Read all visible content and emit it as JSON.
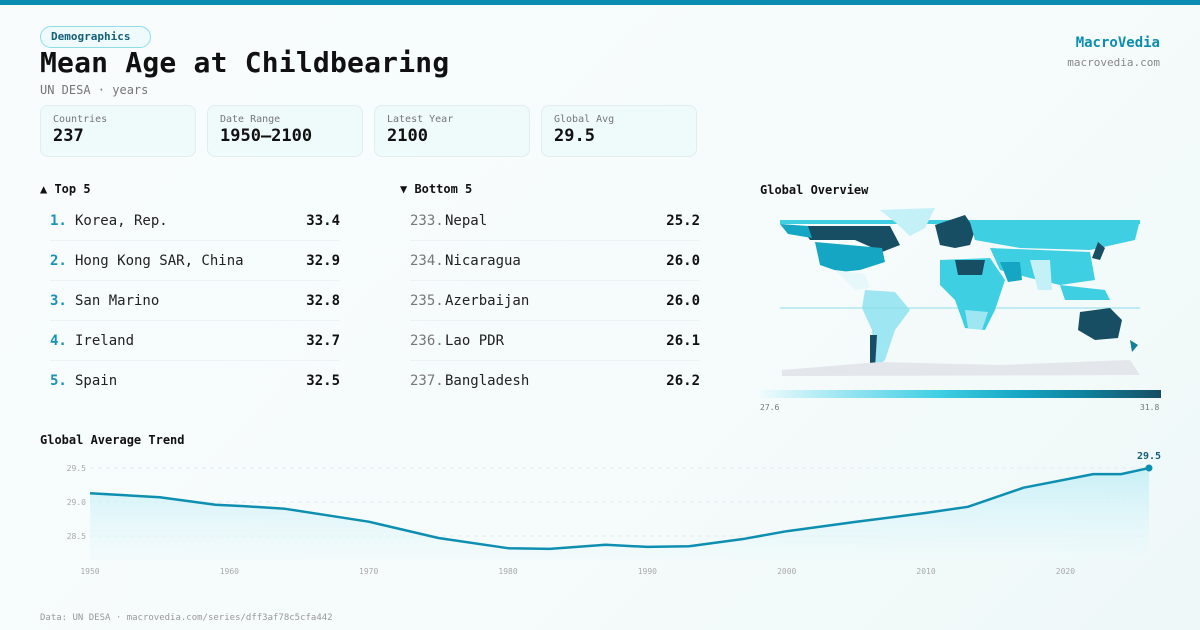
{
  "header": {
    "badge": "Demographics",
    "title": "Mean Age at Childbearing",
    "subtitle": "UN DESA · years",
    "brand": "MacroVedia",
    "brand_url": "macrovedia.com"
  },
  "stats": [
    {
      "label": "Countries",
      "value": "237"
    },
    {
      "label": "Date Range",
      "value": "1950–2100"
    },
    {
      "label": "Latest Year",
      "value": "2100"
    },
    {
      "label": "Global Avg",
      "value": "29.5"
    }
  ],
  "top5": {
    "title": "▲ Top 5",
    "items": [
      {
        "rank": "1.",
        "name": "Korea, Rep.",
        "value": "33.4"
      },
      {
        "rank": "2.",
        "name": "Hong Kong SAR, China",
        "value": "32.9"
      },
      {
        "rank": "3.",
        "name": "San Marino",
        "value": "32.8"
      },
      {
        "rank": "4.",
        "name": "Ireland",
        "value": "32.7"
      },
      {
        "rank": "5.",
        "name": "Spain",
        "value": "32.5"
      }
    ]
  },
  "bottom5": {
    "title": "▼ Bottom 5",
    "items": [
      {
        "rank": "233.",
        "name": "Nepal",
        "value": "25.2"
      },
      {
        "rank": "234.",
        "name": "Nicaragua",
        "value": "26.0"
      },
      {
        "rank": "235.",
        "name": "Azerbaijan",
        "value": "26.0"
      },
      {
        "rank": "236.",
        "name": "Lao PDR",
        "value": "26.1"
      },
      {
        "rank": "237.",
        "name": "Bangladesh",
        "value": "26.2"
      }
    ]
  },
  "map": {
    "title": "Global Overview",
    "legend_min": "27.6",
    "legend_max": "31.8"
  },
  "colors": {
    "accent": "#0a8db0",
    "line": "#0e8fb1",
    "scale_low": "#f0fbfd",
    "scale_high": "#174e63",
    "antarctica": "#e3e6ea"
  },
  "chart_data": {
    "type": "area",
    "title": "Global Average Trend",
    "xlabel": "",
    "ylabel": "",
    "x": [
      1950,
      1955,
      1959,
      1961,
      1964,
      1970,
      1975,
      1980,
      1983,
      1987,
      1990,
      1993,
      1997,
      2000,
      2005,
      2010,
      2013,
      2017,
      2022,
      2024,
      2026
    ],
    "values": [
      29.13,
      29.07,
      28.96,
      28.94,
      28.9,
      28.71,
      28.47,
      28.32,
      28.31,
      28.37,
      28.34,
      28.35,
      28.46,
      28.57,
      28.71,
      28.84,
      28.93,
      29.21,
      29.41,
      29.41,
      29.5
    ],
    "xlim": [
      1950,
      2026
    ],
    "ylim": [
      28.1,
      29.6
    ],
    "x_ticks": [
      "1950",
      "1960",
      "1970",
      "1980",
      "1990",
      "2000",
      "2010",
      "2020"
    ],
    "y_ticks": [
      "29.5",
      "29.0",
      "28.5"
    ],
    "end_label": "29.5",
    "grid": true
  },
  "footer": "Data: UN DESA · macrovedia.com/series/dff3af78c5cfa442"
}
